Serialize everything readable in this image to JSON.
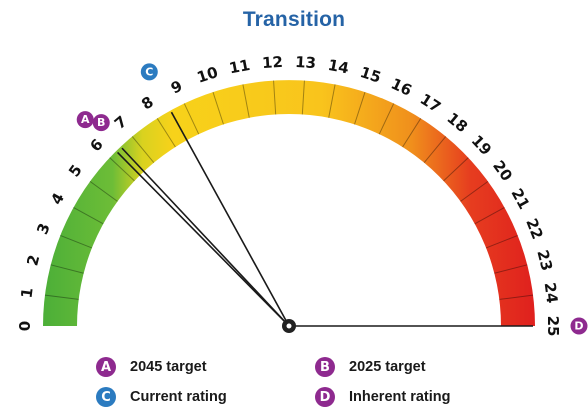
{
  "chart_data": {
    "type": "gauge",
    "title": "Transition",
    "scale": {
      "min": 0,
      "max": 25,
      "ticks": [
        "0",
        "1",
        "2",
        "3",
        "4",
        "5",
        "6",
        "7",
        "8",
        "9",
        "10",
        "11",
        "12",
        "13",
        "14",
        "15",
        "16",
        "17",
        "18",
        "19",
        "20",
        "21",
        "22",
        "23",
        "24",
        "25"
      ]
    },
    "colors": {
      "green": "#4caf38",
      "yellow": "#f7d21a",
      "orange": "#f0901c",
      "red": "#e01f1f"
    },
    "markers": [
      {
        "id": "A",
        "name": "2045 target",
        "value": 6.3,
        "color": "#8e2a8f"
      },
      {
        "id": "B",
        "name": "2025 target",
        "value": 6.5,
        "color": "#8e2a8f"
      },
      {
        "id": "C",
        "name": "Current rating",
        "value": 8.5,
        "color": "#2b7bc0"
      },
      {
        "id": "D",
        "name": "Inherent rating",
        "value": 25,
        "color": "#8e2a8f"
      }
    ]
  }
}
